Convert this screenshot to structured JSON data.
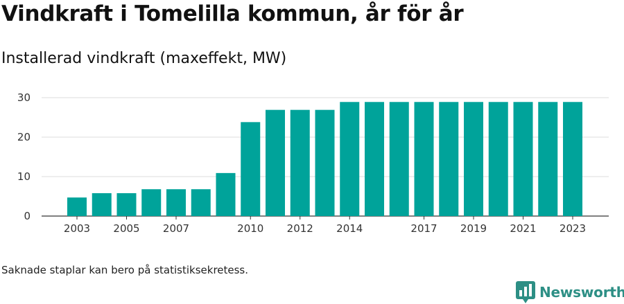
{
  "title": "Vindkraft i Tomelilla kommun, år för år",
  "subtitle": "Installerad vindkraft (maxeffekt, MW)",
  "footnote": "Saknade staplar kan bero på statistiksekretess.",
  "brand": {
    "name": "Newsworthy",
    "color": "#2d8f85",
    "icon": "newsworthy-bar-chart-icon"
  },
  "colors": {
    "bar": "#00a39a",
    "grid": "#dddddd",
    "axis": "#333333"
  },
  "chart_data": {
    "type": "bar",
    "title": "Vindkraft i Tomelilla kommun, år för år",
    "subtitle": "Installerad vindkraft (maxeffekt, MW)",
    "xlabel": "",
    "ylabel": "",
    "categories": [
      "2003",
      "2004",
      "2005",
      "2006",
      "2007",
      "2008",
      "2009",
      "2010",
      "2011",
      "2012",
      "2013",
      "2014",
      "2015",
      "2016",
      "2017",
      "2018",
      "2019",
      "2020",
      "2021",
      "2022",
      "2023"
    ],
    "values": [
      4.7,
      5.8,
      5.8,
      6.8,
      6.8,
      6.8,
      10.9,
      23.8,
      26.9,
      26.9,
      26.9,
      28.9,
      28.9,
      28.9,
      28.9,
      28.9,
      28.9,
      28.9,
      28.9,
      28.9,
      28.9
    ],
    "xtick_labels": [
      "2003",
      "",
      "2005",
      "",
      "2007",
      "",
      "",
      "2010",
      "",
      "2012",
      "",
      "2014",
      "",
      "",
      "2017",
      "",
      "2019",
      "",
      "2021",
      "",
      "2023"
    ],
    "yticks": [
      0,
      10,
      20,
      30
    ],
    "ylim": [
      0,
      30
    ],
    "grid": true,
    "legend": "none"
  }
}
